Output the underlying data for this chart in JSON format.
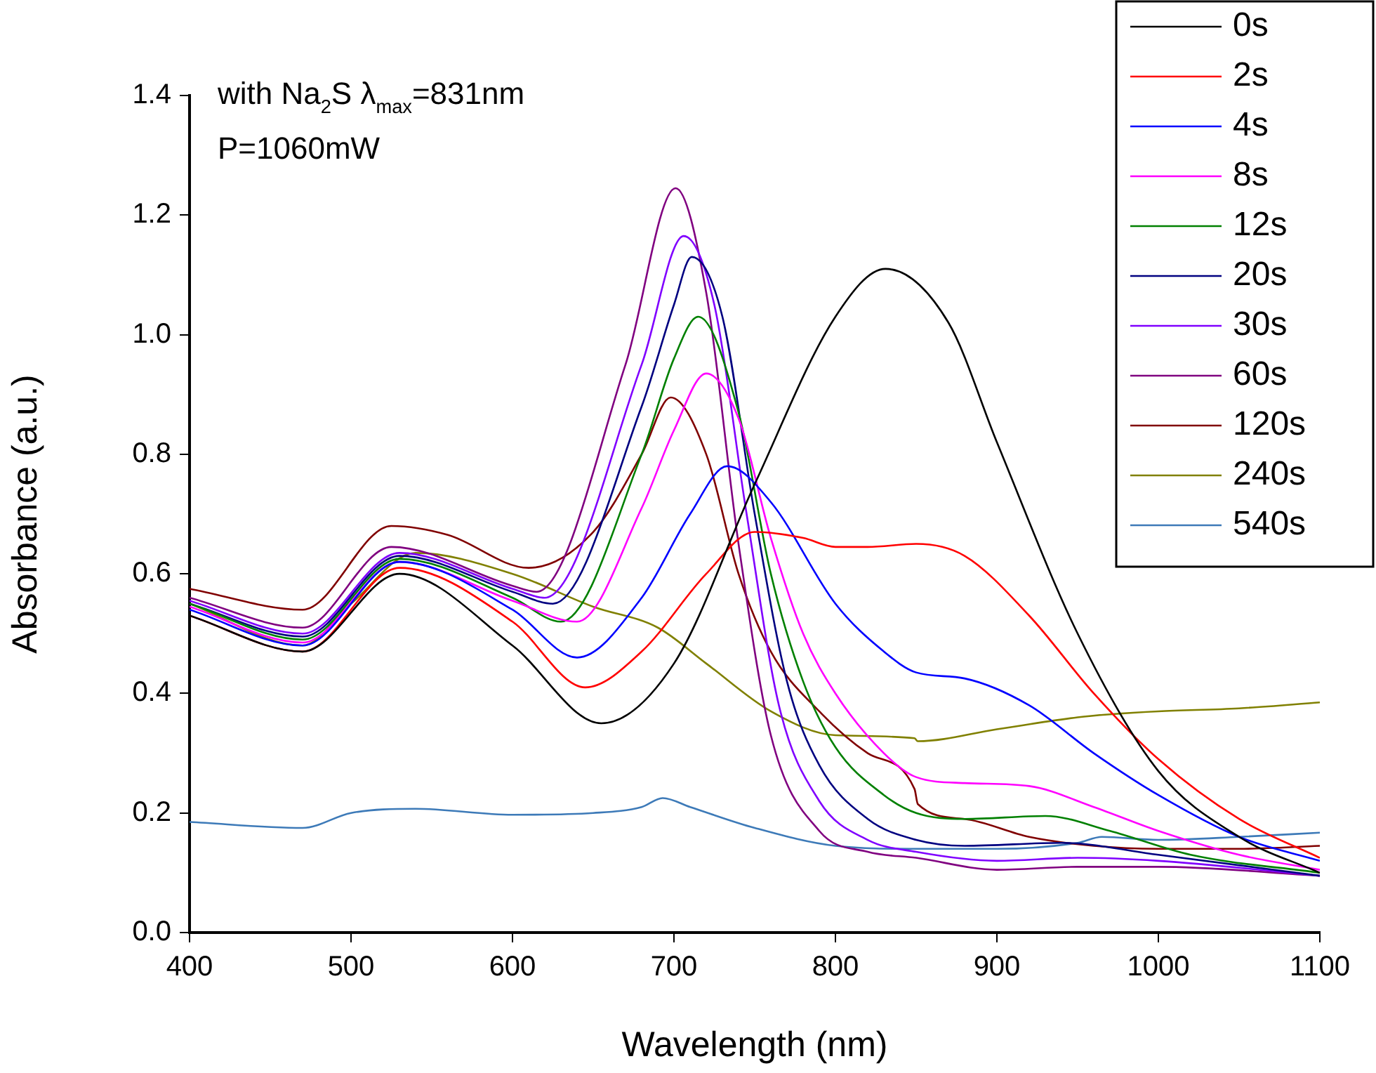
{
  "chart_data": {
    "type": "line",
    "xlabel": "Wavelength (nm)",
    "ylabel": "Absorbance (a.u.)",
    "xlim": [
      400,
      1100
    ],
    "xticks": [
      400,
      500,
      600,
      700,
      800,
      900,
      1000,
      1100
    ],
    "ylim": [
      0,
      1.4
    ],
    "yticks": [
      {
        "value": 0,
        "label": "0.0"
      },
      0.2,
      0.4,
      0.6,
      0.8,
      {
        "value": 1,
        "label": "1.0"
      },
      1.2,
      1.4
    ],
    "grid": false,
    "legend": "top right",
    "marker": "none",
    "line_style": "solid",
    "annotations": [
      "with Na$_{2}$S λ$_{max}$=831nm",
      "P=1060mW"
    ],
    "series": [
      {
        "name": "0s",
        "color": "#000000",
        "x": [
          400,
          470,
          530,
          600,
          655,
          700,
          750,
          800,
          831,
          870,
          900,
          950,
          1000,
          1050,
          1100
        ],
        "values": [
          0.53,
          0.47,
          0.6,
          0.48,
          0.35,
          0.45,
          0.75,
          1.03,
          1.11,
          1.02,
          0.82,
          0.5,
          0.27,
          0.16,
          0.1
        ]
      },
      {
        "name": "2s",
        "color": "#ff0000",
        "x": [
          400,
          470,
          530,
          600,
          645,
          680,
          720,
          750,
          780,
          800,
          820,
          850,
          880,
          920,
          960,
          1000,
          1050,
          1100
        ],
        "values": [
          0.53,
          0.47,
          0.61,
          0.52,
          0.41,
          0.47,
          0.6,
          0.67,
          0.66,
          0.645,
          0.645,
          0.65,
          0.63,
          0.53,
          0.4,
          0.29,
          0.19,
          0.125
        ]
      },
      {
        "name": "4s",
        "color": "#0000ff",
        "x": [
          400,
          470,
          530,
          600,
          640,
          680,
          710,
          733,
          760,
          800,
          830,
          850,
          880,
          920,
          960,
          1000,
          1050,
          1100
        ],
        "values": [
          0.54,
          0.48,
          0.62,
          0.54,
          0.46,
          0.56,
          0.7,
          0.78,
          0.72,
          0.55,
          0.47,
          0.435,
          0.425,
          0.38,
          0.3,
          0.23,
          0.16,
          0.12
        ]
      },
      {
        "name": "8s",
        "color": "#ff00ff",
        "x": [
          400,
          470,
          530,
          600,
          640,
          680,
          700,
          720,
          740,
          760,
          780,
          800,
          830,
          850,
          880,
          920,
          960,
          1000,
          1050,
          1100
        ],
        "values": [
          0.545,
          0.485,
          0.62,
          0.555,
          0.52,
          0.71,
          0.84,
          0.935,
          0.86,
          0.66,
          0.5,
          0.4,
          0.3,
          0.26,
          0.25,
          0.245,
          0.21,
          0.17,
          0.13,
          0.105
        ]
      },
      {
        "name": "12s",
        "color": "#008000",
        "x": [
          400,
          470,
          530,
          600,
          630,
          680,
          700,
          715,
          740,
          760,
          780,
          800,
          830,
          850,
          880,
          930,
          970,
          1020,
          1100
        ],
        "values": [
          0.55,
          0.49,
          0.625,
          0.56,
          0.52,
          0.8,
          0.96,
          1.03,
          0.87,
          0.6,
          0.42,
          0.31,
          0.23,
          0.2,
          0.19,
          0.195,
          0.17,
          0.13,
          0.1
        ]
      },
      {
        "name": "20s",
        "color": "#000080",
        "x": [
          400,
          470,
          530,
          600,
          625,
          680,
          700,
          711,
          730,
          750,
          770,
          790,
          820,
          850,
          880,
          940,
          1000,
          1100
        ],
        "values": [
          0.55,
          0.495,
          0.63,
          0.57,
          0.55,
          0.88,
          1.05,
          1.13,
          1.03,
          0.7,
          0.42,
          0.28,
          0.19,
          0.155,
          0.145,
          0.15,
          0.13,
          0.095
        ]
      },
      {
        "name": "30s",
        "color": "#8000ff",
        "x": [
          400,
          470,
          530,
          600,
          620,
          680,
          706,
          725,
          745,
          765,
          790,
          820,
          850,
          900,
          950,
          1000,
          1100
        ],
        "values": [
          0.555,
          0.5,
          0.635,
          0.575,
          0.56,
          0.95,
          1.165,
          1.05,
          0.7,
          0.38,
          0.22,
          0.155,
          0.135,
          0.12,
          0.125,
          0.12,
          0.095
        ]
      },
      {
        "name": "60s",
        "color": "#800080",
        "x": [
          400,
          470,
          525,
          600,
          615,
          670,
          701,
          720,
          740,
          760,
          790,
          820,
          850,
          900,
          950,
          1000,
          1100
        ],
        "values": [
          0.56,
          0.51,
          0.645,
          0.58,
          0.57,
          0.95,
          1.245,
          1.07,
          0.65,
          0.33,
          0.17,
          0.135,
          0.125,
          0.105,
          0.11,
          0.11,
          0.095
        ]
      },
      {
        "name": "120s",
        "color": "#800000",
        "x": [
          400,
          470,
          525,
          560,
          610,
          650,
          680,
          698,
          720,
          740,
          760,
          790,
          820,
          849,
          851,
          880,
          920,
          960,
          1000,
          1050,
          1100
        ],
        "values": [
          0.575,
          0.54,
          0.68,
          0.665,
          0.61,
          0.67,
          0.8,
          0.895,
          0.8,
          0.6,
          0.47,
          0.37,
          0.3,
          0.24,
          0.215,
          0.19,
          0.16,
          0.145,
          0.14,
          0.14,
          0.145
        ]
      },
      {
        "name": "240s",
        "color": "#808000",
        "x": [
          400,
          470,
          500,
          540,
          600,
          650,
          690,
          720,
          760,
          800,
          849,
          851,
          900,
          950,
          970,
          1000,
          1050,
          1100
        ],
        "values": [
          0.55,
          0.48,
          0.55,
          0.635,
          0.6,
          0.545,
          0.51,
          0.45,
          0.37,
          0.33,
          0.325,
          0.32,
          0.34,
          0.36,
          0.365,
          0.37,
          0.375,
          0.385
        ]
      },
      {
        "name": "540s",
        "color": "#3d7ab8",
        "x": [
          400,
          470,
          500,
          540,
          600,
          650,
          680,
          693,
          710,
          750,
          800,
          850,
          900,
          950,
          965,
          1000,
          1050,
          1100
        ],
        "values": [
          0.185,
          0.175,
          0.2,
          0.207,
          0.197,
          0.2,
          0.21,
          0.225,
          0.21,
          0.175,
          0.145,
          0.14,
          0.14,
          0.15,
          0.16,
          0.155,
          0.16,
          0.167
        ]
      }
    ]
  }
}
